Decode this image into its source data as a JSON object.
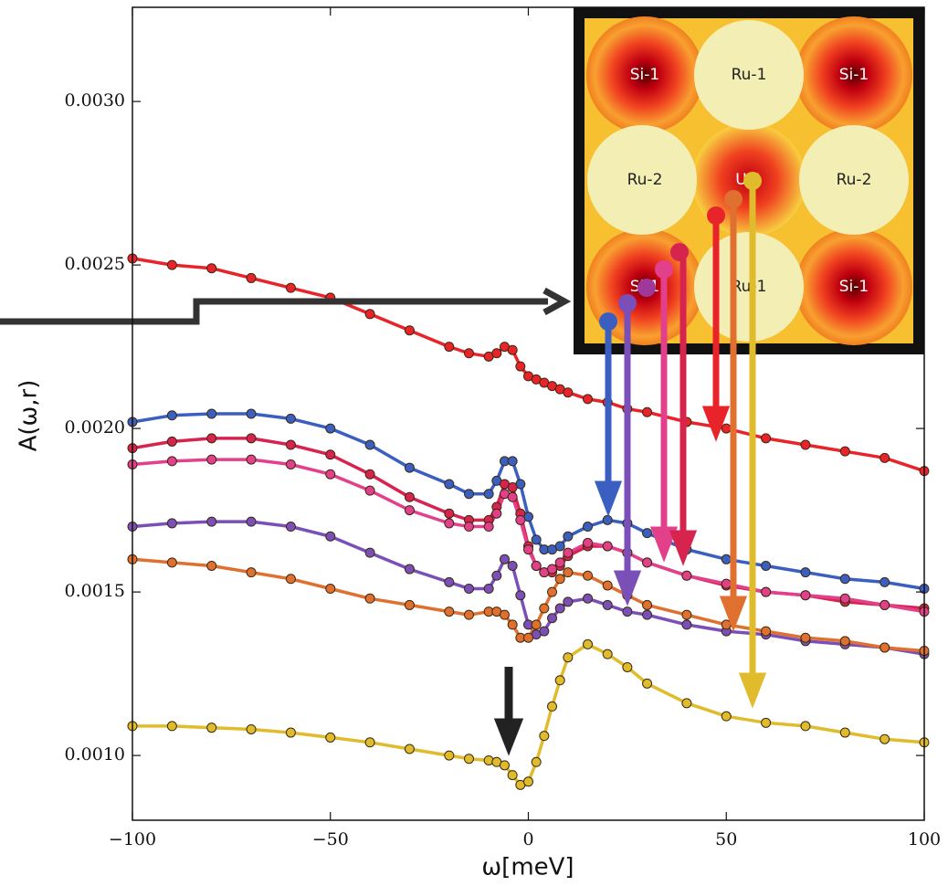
{
  "chart_data": {
    "type": "line",
    "xlabel": "ω[meV]",
    "ylabel": "A(ω,r)",
    "x": [
      -100,
      -90,
      -80,
      -70,
      -60,
      -50,
      -40,
      -30,
      -20,
      -15,
      -10,
      -8,
      -6,
      -4,
      -2,
      0,
      2,
      4,
      6,
      8,
      10,
      15,
      20,
      25,
      30,
      40,
      50,
      60,
      70,
      80,
      90,
      100
    ],
    "xlim": [
      -100,
      100
    ],
    "xticks": [
      {
        "value": -100,
        "label": "−100"
      },
      {
        "value": -50,
        "label": "−50"
      },
      0,
      50,
      100
    ],
    "ylim": [
      0.000802,
      0.003288
    ],
    "yticks": [
      {
        "value": 0.001,
        "label": "0.0010"
      },
      {
        "value": 0.0015,
        "label": "0.0015"
      },
      {
        "value": 0.002,
        "label": "0.0020"
      },
      {
        "value": 0.0025,
        "label": "0.0025"
      },
      {
        "value": 0.003,
        "label": "0.0030"
      }
    ],
    "series": [
      {
        "color": "#e8242a",
        "values": [
          0.00252,
          0.0025,
          0.00249,
          0.00246,
          0.00243,
          0.0024,
          0.00235,
          0.0023,
          0.00225,
          0.00223,
          0.00222,
          0.00223,
          0.00225,
          0.00224,
          0.00219,
          0.00216,
          0.00215,
          0.00214,
          0.00213,
          0.00212,
          0.00211,
          0.00209,
          0.00208,
          0.00206,
          0.00205,
          0.00202,
          0.002,
          0.00197,
          0.00195,
          0.00193,
          0.00191,
          0.00187
        ]
      },
      {
        "color": "#3b5fc0",
        "values": [
          0.00202,
          0.00204,
          0.002045,
          0.002045,
          0.00203,
          0.002,
          0.00195,
          0.00188,
          0.00183,
          0.0018,
          0.0018,
          0.00184,
          0.0019,
          0.0019,
          0.00183,
          0.00173,
          0.00166,
          0.00163,
          0.00163,
          0.00164,
          0.00167,
          0.0017,
          0.00172,
          0.00171,
          0.00168,
          0.00163,
          0.0016,
          0.00158,
          0.00156,
          0.00154,
          0.00153,
          0.00151
        ]
      },
      {
        "color": "#d6244e",
        "values": [
          0.00194,
          0.00196,
          0.00197,
          0.00197,
          0.00195,
          0.00192,
          0.00186,
          0.00179,
          0.00174,
          0.00172,
          0.00172,
          0.00176,
          0.00183,
          0.00182,
          0.00174,
          0.00164,
          0.00158,
          0.00156,
          0.00156,
          0.00158,
          0.00161,
          0.00164,
          0.00164,
          0.00162,
          0.00159,
          0.00155,
          0.00152,
          0.0015,
          0.00149,
          0.00147,
          0.00146,
          0.00145
        ]
      },
      {
        "color": "#e3408c",
        "values": [
          0.00189,
          0.0019,
          0.001905,
          0.001905,
          0.00189,
          0.00186,
          0.00181,
          0.00175,
          0.00171,
          0.0017,
          0.0017,
          0.00174,
          0.0018,
          0.00179,
          0.00172,
          0.00163,
          0.00158,
          0.00156,
          0.00157,
          0.00159,
          0.00162,
          0.00165,
          0.00164,
          0.00162,
          0.00159,
          0.00155,
          0.001525,
          0.0015,
          0.00149,
          0.00148,
          0.00146,
          0.00144
        ]
      },
      {
        "color": "#7b4fb8",
        "values": [
          0.0017,
          0.00171,
          0.001715,
          0.001715,
          0.0017,
          0.00167,
          0.00162,
          0.00157,
          0.00153,
          0.00151,
          0.00151,
          0.00155,
          0.0016,
          0.00158,
          0.00149,
          0.0014,
          0.00137,
          0.00138,
          0.00142,
          0.00145,
          0.00147,
          0.00148,
          0.00146,
          0.00144,
          0.00143,
          0.0014,
          0.00138,
          0.00137,
          0.00135,
          0.00134,
          0.00133,
          0.00131
        ]
      },
      {
        "color": "#e07030",
        "values": [
          0.0016,
          0.00159,
          0.00158,
          0.00156,
          0.00154,
          0.00151,
          0.00148,
          0.00146,
          0.00144,
          0.00143,
          0.00144,
          0.00144,
          0.00143,
          0.0014,
          0.00136,
          0.00136,
          0.0014,
          0.00145,
          0.0015,
          0.00154,
          0.00156,
          0.00155,
          0.00152,
          0.00149,
          0.00146,
          0.00143,
          0.0014,
          0.00138,
          0.00136,
          0.00135,
          0.00133,
          0.00132
        ]
      },
      {
        "color": "#e0bb2c",
        "values": [
          0.00109,
          0.00109,
          0.001085,
          0.00108,
          0.00107,
          0.001055,
          0.00104,
          0.00102,
          0.001,
          0.00099,
          0.000985,
          0.00098,
          0.00097,
          0.00094,
          0.00091,
          0.00092,
          0.00098,
          0.00106,
          0.00115,
          0.00123,
          0.0013,
          0.00134,
          0.00131,
          0.00127,
          0.00122,
          0.00116,
          0.00112,
          0.0011,
          0.00109,
          0.00107,
          0.00105,
          0.00104
        ]
      }
    ]
  },
  "inset": {
    "labels": [
      [
        "Si-1",
        "Ru-1",
        "Si-1"
      ],
      [
        "Ru-2",
        "U-1",
        "Ru-2"
      ],
      [
        "Si-1",
        "Ru-1",
        "Si-1"
      ]
    ]
  }
}
